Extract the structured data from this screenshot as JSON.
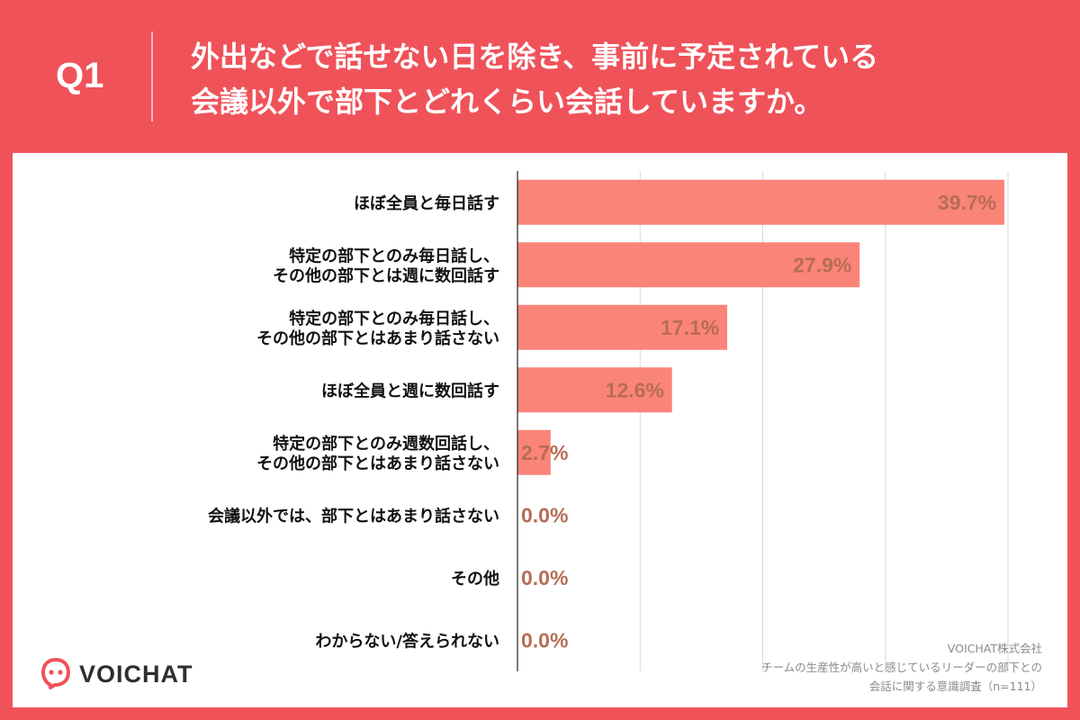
{
  "header": {
    "q_label": "Q1",
    "question_line1": "外出などで話せない日を除き、事前に予定されている",
    "question_line2": "会議以外で部下とどれくらい会話していますか。"
  },
  "colors": {
    "background": "#f0525a",
    "bar": "#fb8479",
    "value_text": "#b66d55",
    "grid": "#d9d9d9"
  },
  "chart_data": {
    "type": "bar",
    "orientation": "horizontal",
    "categories": [
      [
        "ほぼ全員と毎日話す"
      ],
      [
        "特定の部下とのみ毎日話し、",
        "その他の部下とは週に数回話す"
      ],
      [
        "特定の部下とのみ毎日話し、",
        "その他の部下とはあまり話さない"
      ],
      [
        "ほぼ全員と週に数回話す"
      ],
      [
        "特定の部下とのみ週数回話し、",
        "その他の部下とはあまり話さない"
      ],
      [
        "会議以外では、部下とはあまり話さない"
      ],
      [
        "その他"
      ],
      [
        "わからない/答えられない"
      ]
    ],
    "values": [
      39.7,
      27.9,
      17.1,
      12.6,
      2.7,
      0.0,
      0.0,
      0.0
    ],
    "value_labels": [
      "39.7%",
      "27.9%",
      "17.1%",
      "12.6%",
      "2.7%",
      "0.0%",
      "0.0%",
      "0.0%"
    ],
    "xlim": [
      0,
      40
    ],
    "grid": true
  },
  "footer": {
    "logo_text": "VOICHAT",
    "source_line1": "VOICHAT株式会社",
    "source_line2": "チームの生産性が高いと感じているリーダーの部下との",
    "source_line3": "会話に関する意識調査（n=111）"
  }
}
